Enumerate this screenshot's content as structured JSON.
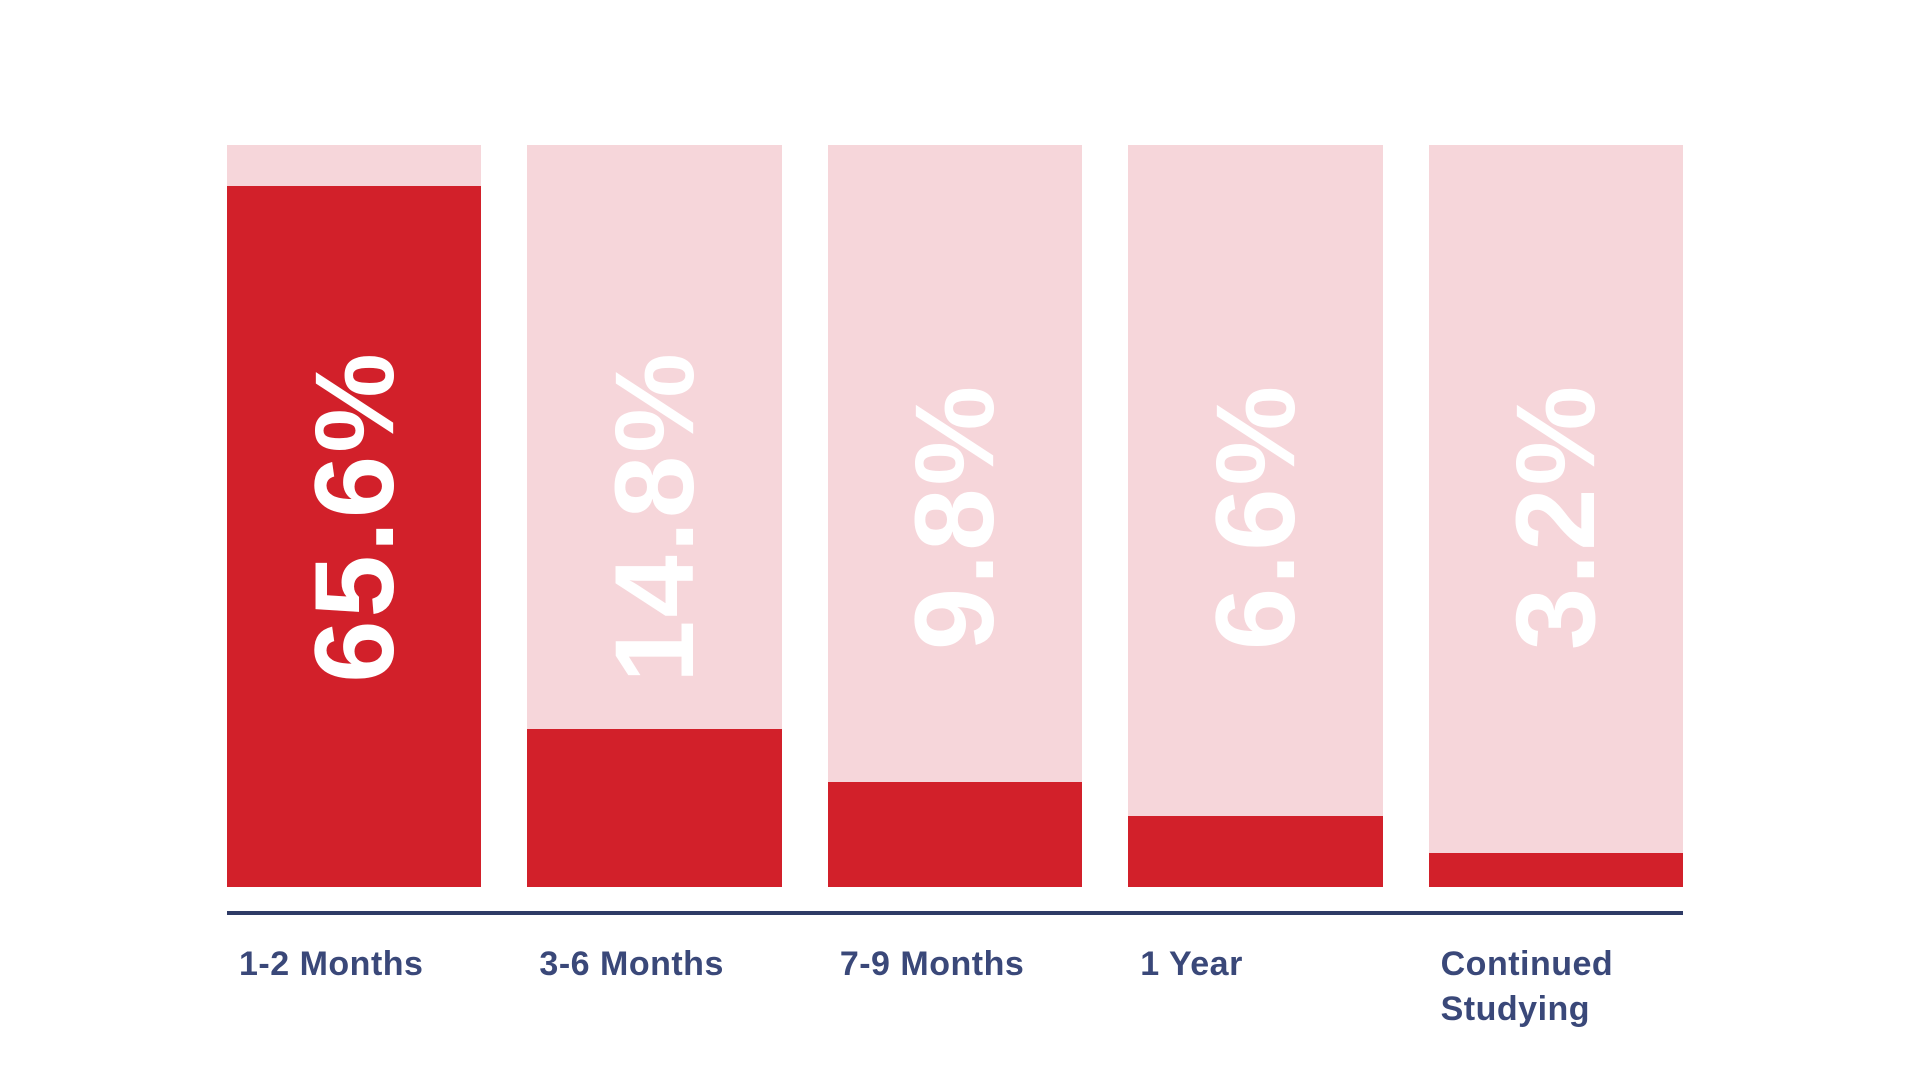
{
  "chart_data": {
    "type": "bar",
    "title": "",
    "xlabel": "",
    "ylabel": "",
    "categories": [
      "1-2 Months",
      "3-6 Months",
      "7-9 Months",
      "1 Year",
      "Continued Studying"
    ],
    "values": [
      65.6,
      14.8,
      9.8,
      6.6,
      3.2
    ],
    "value_labels": [
      "65.6%",
      "14.8%",
      "9.8%",
      "6.6%",
      "3.2%"
    ],
    "ylim": [
      0,
      100
    ],
    "grid": false,
    "legend": false,
    "orientation": "vertical-columns",
    "value_label_rotation_deg": -90,
    "colors": {
      "bar_fill": "#d2202a",
      "bar_track": "#f6d6da",
      "value_label": "#ffffff",
      "category_label": "#3a4879",
      "axis_line": "#2e3b66",
      "background": "#ffffff"
    },
    "layout": {
      "fill_scale": 1.44
    }
  }
}
